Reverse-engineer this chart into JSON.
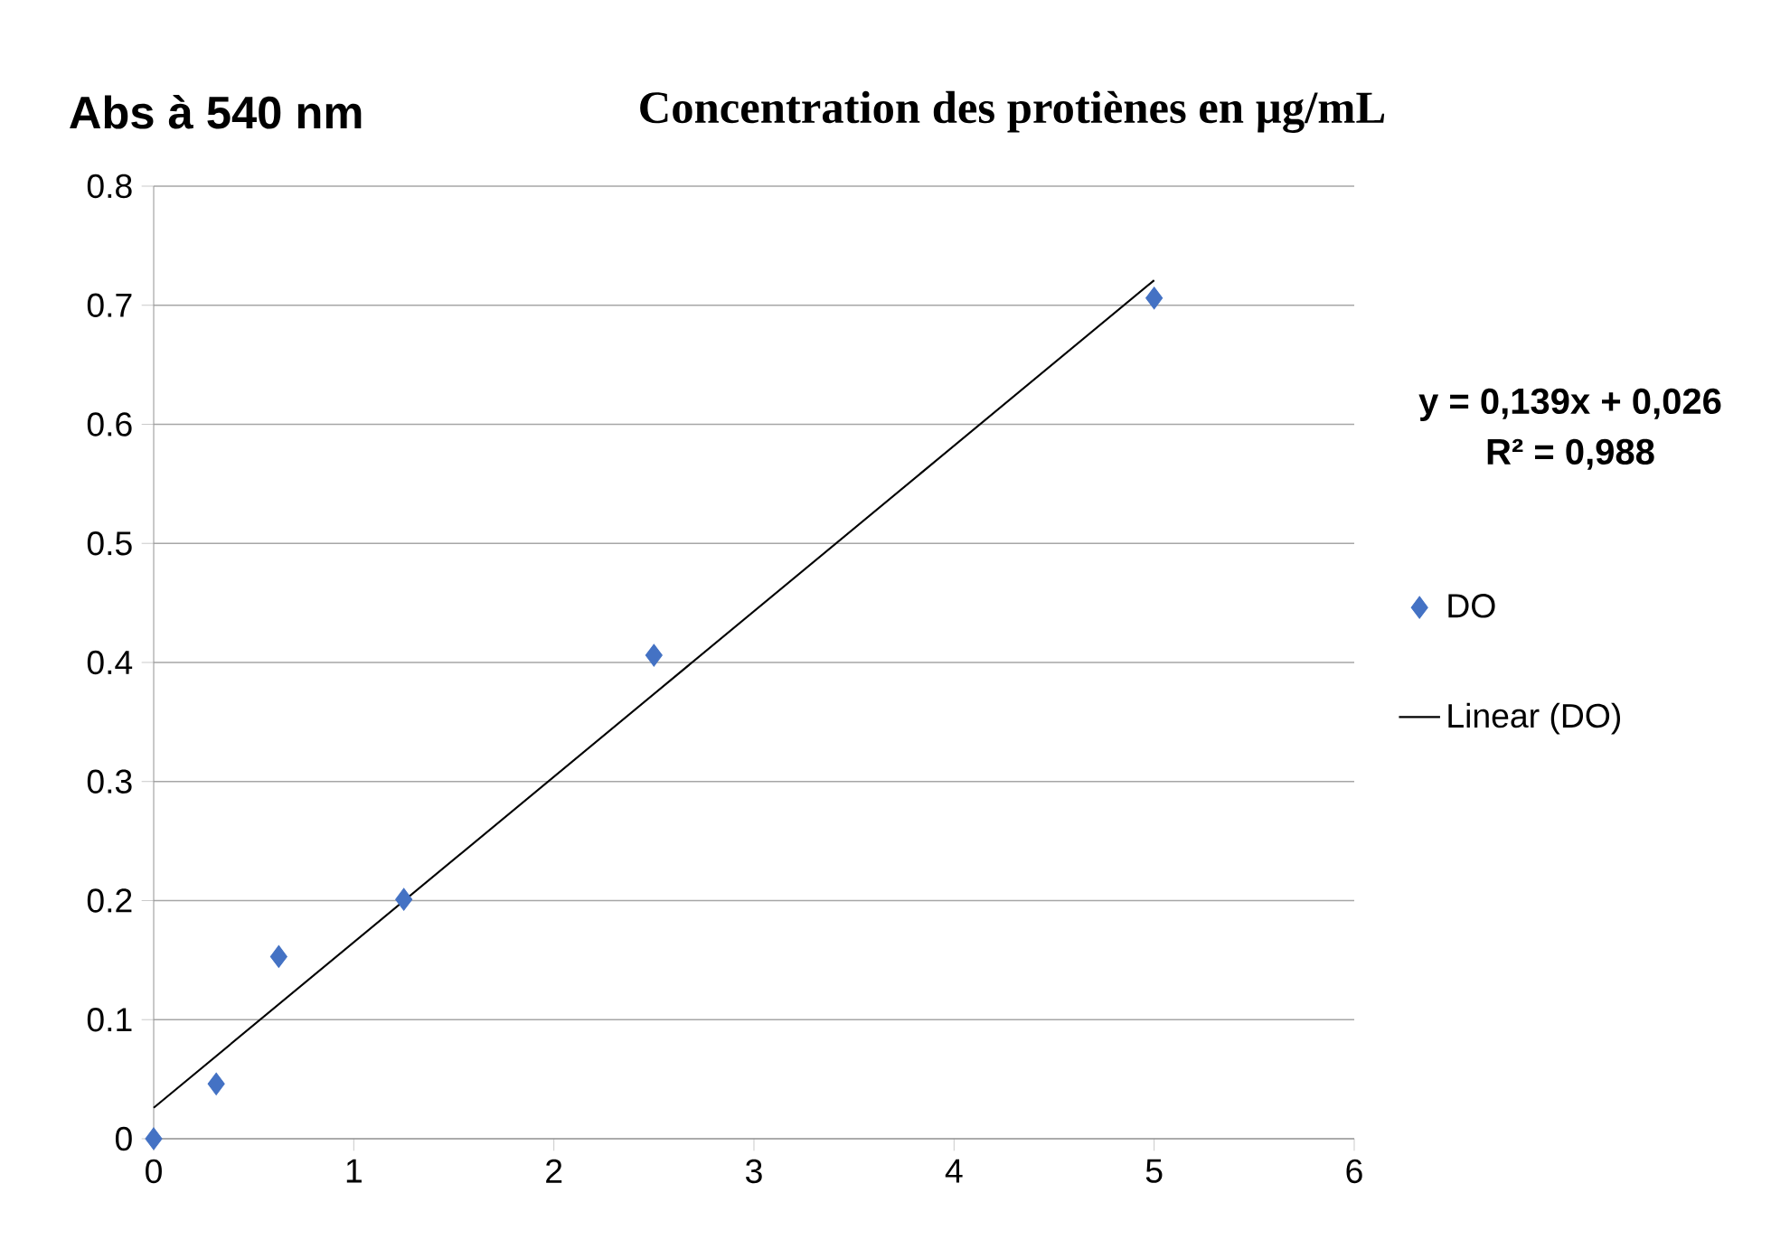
{
  "chart_data": {
    "type": "scatter",
    "title": "Concentration des protiènes en µg/mL",
    "ylabel": "Abs à 540 nm",
    "annotations": [
      "y = 0,139x + 0,026",
      "R² = 0,988"
    ],
    "series": [
      {
        "name": "DO",
        "color": "#4472c4",
        "x": [
          0,
          0.3125,
          0.625,
          1.25,
          2.5,
          5
        ],
        "values": [
          0,
          0.046,
          0.153,
          0.201,
          0.406,
          0.706
        ]
      },
      {
        "name": "Linear (DO)",
        "type": "line",
        "marker": "none",
        "color": "#000000",
        "x": [
          0,
          5
        ],
        "values": [
          0.026,
          0.721
        ]
      }
    ],
    "xlim": [
      0,
      6
    ],
    "ylim": [
      0,
      0.8
    ],
    "xticks": [
      0,
      1,
      2,
      3,
      4,
      5,
      6
    ],
    "yticks": [
      0,
      0.1,
      0.2,
      0.3,
      0.4,
      0.5,
      0.6,
      0.7,
      0.8
    ],
    "grid": "y",
    "legend": "right",
    "marker": "diamond"
  }
}
